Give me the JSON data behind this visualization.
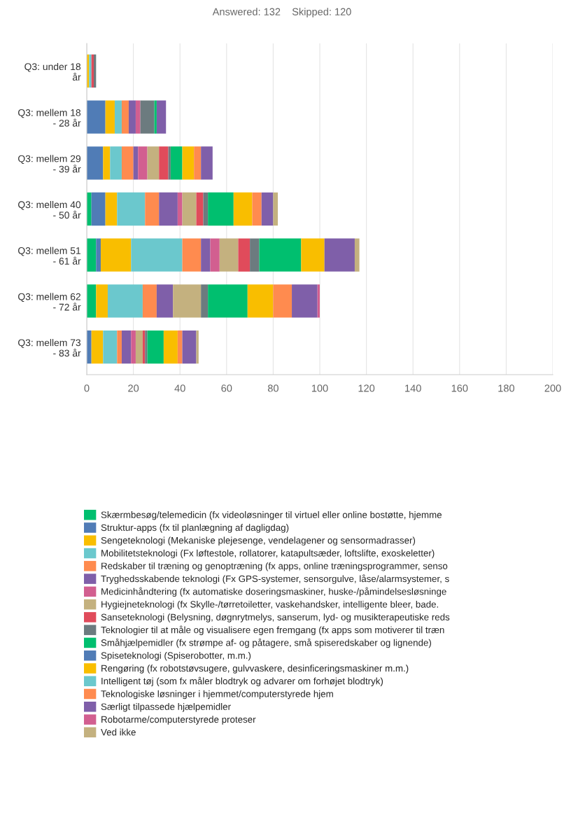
{
  "chart_data": {
    "type": "bar",
    "orientation": "horizontal",
    "stacked": true,
    "title": "Answered: 132    Skipped: 120",
    "categories": [
      "Q3: under 18\når",
      "Q3: mellem 18\n- 28 år",
      "Q3: mellem 29\n- 39 år",
      "Q3: mellem 40\n- 50 år",
      "Q3: mellem 51\n- 61 år",
      "Q3: mellem 62\n- 72 år",
      "Q3: mellem 73\n- 83 år"
    ],
    "series": [
      {
        "name": "Skærmbesøg/telemedicin (fx videoløsninger til virtuel eller online bostøtte, hjemme",
        "color": "#00bf6f",
        "values": [
          0,
          0,
          0,
          2,
          4,
          4,
          0
        ]
      },
      {
        "name": "Struktur-apps (fx til planlægning af dagligdag)",
        "color": "#507cb6",
        "values": [
          0,
          8,
          7,
          6,
          2,
          0,
          2
        ]
      },
      {
        "name": "Sengeteknologi (Mekaniske plejesenge, vendelagener og sensormadrasser)",
        "color": "#f9be00",
        "values": [
          1,
          4,
          3,
          5,
          13,
          5,
          5
        ]
      },
      {
        "name": "Mobilitetsteknologi (Fx løftestole, rollatorer, katapultsæder, loftslifte, exoskeletter)",
        "color": "#6bc8cd",
        "values": [
          1,
          3,
          5,
          12,
          22,
          15,
          6
        ]
      },
      {
        "name": "Redskaber til træning og genoptræning (fx apps, online træningsprogrammer, senso",
        "color": "#ff8b4f",
        "values": [
          0,
          3,
          5,
          6,
          8,
          6,
          2
        ]
      },
      {
        "name": "Tryghedsskabende teknologi (Fx GPS-systemer, sensorgulve, låse/alarmsystemer, s",
        "color": "#7f5fa9",
        "values": [
          0,
          3,
          2,
          8,
          4,
          7,
          4
        ]
      },
      {
        "name": "Medicinhåndtering (fx automatiske doseringsmaskiner, huske-/påmindelsesløsninge",
        "color": "#d25f90",
        "values": [
          0,
          2,
          4,
          2,
          4,
          0,
          2
        ]
      },
      {
        "name": "Hygiejneteknologi (fx Skylle-/tørretoiletter, vaskehandsker, intelligente bleer, bade.",
        "color": "#c4b17f",
        "values": [
          0,
          0,
          5,
          6,
          8,
          12,
          3
        ]
      },
      {
        "name": "Sanseteknologi (Belysning, døgnrytmelys, sanserum, lyd- og musikterapeutiske reds",
        "color": "#e04b5b",
        "values": [
          1,
          0,
          4,
          3,
          5,
          0,
          1
        ]
      },
      {
        "name": "Teknologier til at måle og visualisere egen fremgang (fx apps som motiverer til træn",
        "color": "#6c7b7f",
        "values": [
          1,
          6,
          1,
          2,
          4,
          3,
          1
        ]
      },
      {
        "name": "Småhjælpemidler (fx strømpe af- og påtagere, små spiseredskaber og lignende)",
        "color": "#00bf6f",
        "values": [
          0,
          1,
          5,
          11,
          18,
          17,
          7
        ]
      },
      {
        "name": "Spiseteknologi (Spiserobotter, m.m.)",
        "color": "#507cb6",
        "values": [
          0,
          0,
          0,
          0,
          0,
          0,
          0
        ]
      },
      {
        "name": "Rengøring (fx robotstøvsugere, gulvvaskere, desinficeringsmaskiner m.m.)",
        "color": "#f9be00",
        "values": [
          0,
          0,
          5,
          8,
          10,
          11,
          6
        ]
      },
      {
        "name": "Intelligent tøj (som fx måler blodtryk og advarer om forhøjet blodtryk)",
        "color": "#6bc8cd",
        "values": [
          0,
          0,
          0,
          0,
          0,
          0,
          0
        ]
      },
      {
        "name": "Teknologiske løsninger i hjemmet/computerstyrede hjem",
        "color": "#ff8b4f",
        "values": [
          0,
          0,
          3,
          4,
          0,
          8,
          2
        ]
      },
      {
        "name": "Særligt tilpassede hjælpemidler",
        "color": "#7f5fa9",
        "values": [
          0,
          4,
          5,
          5,
          13,
          11,
          6
        ]
      },
      {
        "name": "Robotarme/computerstyrede proteser",
        "color": "#d25f90",
        "values": [
          0,
          0,
          0,
          0,
          0,
          1,
          0
        ]
      },
      {
        "name": "Ved ikke",
        "color": "#c4b17f",
        "values": [
          0,
          0,
          0,
          2,
          2,
          0,
          1
        ]
      }
    ],
    "xlim": [
      0,
      200
    ],
    "xticks": [
      0,
      20,
      40,
      60,
      80,
      100,
      120,
      140,
      160,
      180,
      200
    ],
    "grid": "x",
    "legend": "bottom"
  }
}
